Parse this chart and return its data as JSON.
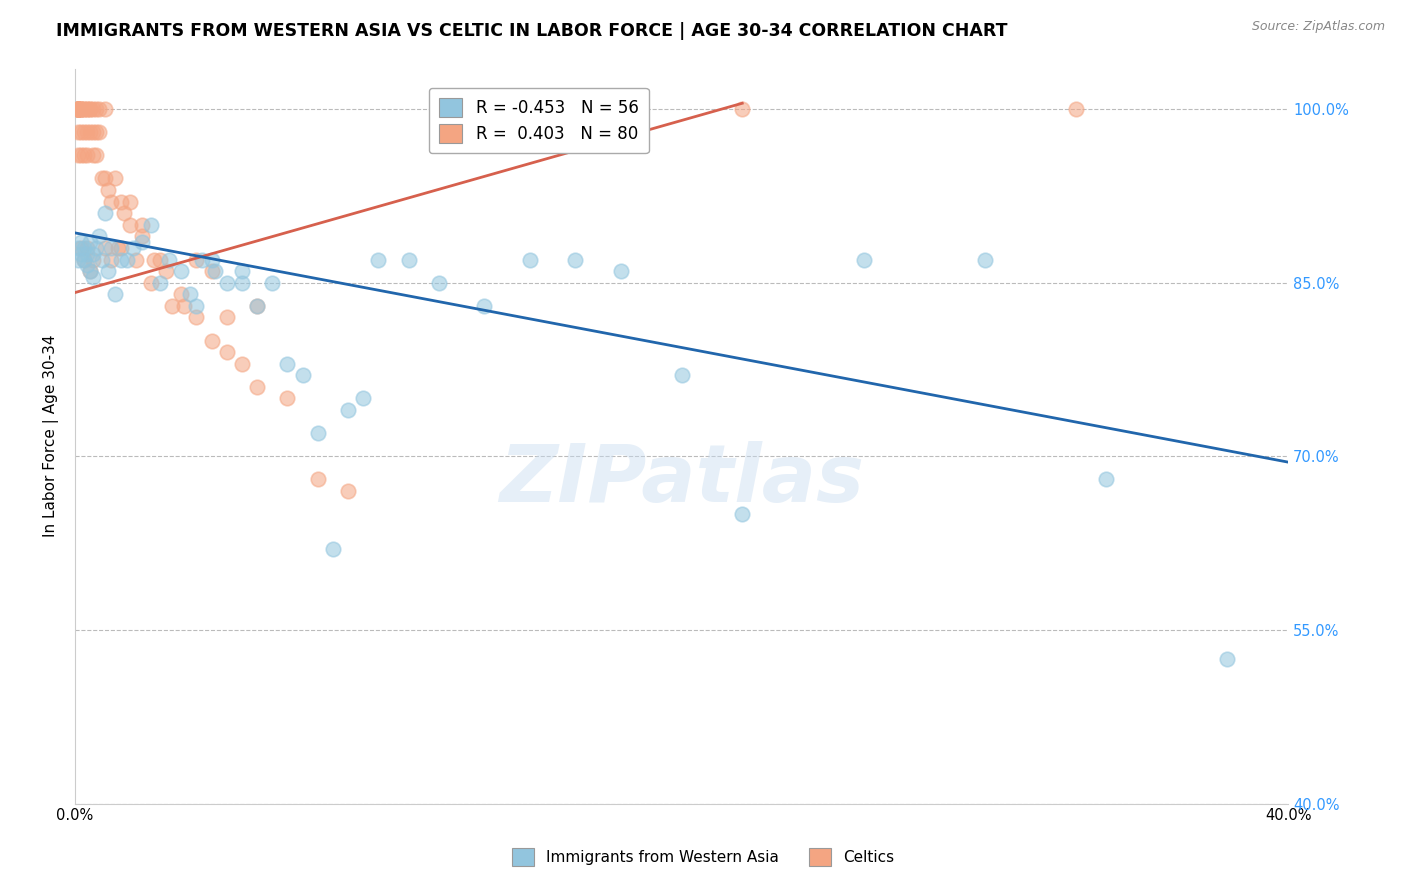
{
  "title": "IMMIGRANTS FROM WESTERN ASIA VS CELTIC IN LABOR FORCE | AGE 30-34 CORRELATION CHART",
  "source": "Source: ZipAtlas.com",
  "ylabel": "In Labor Force | Age 30-34",
  "xlim": [
    0.0,
    0.4
  ],
  "ylim": [
    0.4,
    1.035
  ],
  "ytick_positions": [
    0.4,
    0.55,
    0.7,
    0.85,
    1.0
  ],
  "yticklabels": [
    "40.0%",
    "55.0%",
    "70.0%",
    "85.0%",
    "100.0%"
  ],
  "xtick_positions": [
    0.0,
    0.05,
    0.1,
    0.15,
    0.2,
    0.25,
    0.3,
    0.35,
    0.4
  ],
  "xticklabels": [
    "0.0%",
    "",
    "",
    "",
    "",
    "",
    "",
    "",
    "40.0%"
  ],
  "blue_color": "#92c5de",
  "blue_line_color": "#2166ac",
  "pink_color": "#f4a582",
  "pink_line_color": "#d6604d",
  "watermark_text": "ZIPatlas",
  "legend_R_blue": "-0.453",
  "legend_N_blue": "56",
  "legend_R_pink": "0.403",
  "legend_N_pink": "80",
  "blue_scatter_x": [
    0.001,
    0.001,
    0.002,
    0.002,
    0.003,
    0.003,
    0.004,
    0.004,
    0.005,
    0.005,
    0.006,
    0.006,
    0.007,
    0.008,
    0.009,
    0.01,
    0.011,
    0.012,
    0.013,
    0.015,
    0.017,
    0.019,
    0.022,
    0.025,
    0.028,
    0.031,
    0.035,
    0.038,
    0.042,
    0.046,
    0.05,
    0.055,
    0.06,
    0.065,
    0.07,
    0.08,
    0.09,
    0.1,
    0.11,
    0.12,
    0.135,
    0.15,
    0.165,
    0.18,
    0.2,
    0.22,
    0.26,
    0.3,
    0.34,
    0.38,
    0.04,
    0.045,
    0.055,
    0.075,
    0.085,
    0.095
  ],
  "blue_scatter_y": [
    0.88,
    0.87,
    0.875,
    0.885,
    0.87,
    0.88,
    0.865,
    0.875,
    0.885,
    0.86,
    0.875,
    0.855,
    0.88,
    0.89,
    0.87,
    0.91,
    0.86,
    0.88,
    0.84,
    0.87,
    0.87,
    0.88,
    0.885,
    0.9,
    0.85,
    0.87,
    0.86,
    0.84,
    0.87,
    0.86,
    0.85,
    0.86,
    0.83,
    0.85,
    0.78,
    0.72,
    0.74,
    0.87,
    0.87,
    0.85,
    0.83,
    0.87,
    0.87,
    0.86,
    0.77,
    0.65,
    0.87,
    0.87,
    0.68,
    0.525,
    0.83,
    0.87,
    0.85,
    0.77,
    0.62,
    0.75
  ],
  "pink_scatter_x": [
    0.001,
    0.001,
    0.001,
    0.001,
    0.001,
    0.001,
    0.001,
    0.001,
    0.001,
    0.001,
    0.001,
    0.001,
    0.002,
    0.002,
    0.002,
    0.002,
    0.002,
    0.002,
    0.003,
    0.003,
    0.003,
    0.003,
    0.004,
    0.004,
    0.004,
    0.004,
    0.005,
    0.005,
    0.005,
    0.006,
    0.006,
    0.006,
    0.007,
    0.007,
    0.007,
    0.008,
    0.008,
    0.009,
    0.01,
    0.01,
    0.011,
    0.012,
    0.013,
    0.014,
    0.015,
    0.016,
    0.018,
    0.02,
    0.022,
    0.025,
    0.028,
    0.032,
    0.036,
    0.04,
    0.045,
    0.05,
    0.06,
    0.07,
    0.08,
    0.09,
    0.01,
    0.012,
    0.015,
    0.018,
    0.022,
    0.026,
    0.03,
    0.035,
    0.04,
    0.045,
    0.05,
    0.055,
    0.06,
    0.002,
    0.003,
    0.004,
    0.005,
    0.006,
    0.22,
    0.33
  ],
  "pink_scatter_y": [
    1.0,
    1.0,
    1.0,
    1.0,
    1.0,
    1.0,
    1.0,
    1.0,
    1.0,
    1.0,
    0.98,
    0.96,
    1.0,
    1.0,
    1.0,
    1.0,
    0.98,
    0.96,
    1.0,
    1.0,
    0.98,
    0.96,
    1.0,
    1.0,
    0.98,
    0.96,
    1.0,
    1.0,
    0.98,
    1.0,
    0.98,
    0.96,
    1.0,
    0.98,
    0.96,
    1.0,
    0.98,
    0.94,
    1.0,
    0.94,
    0.93,
    0.92,
    0.94,
    0.88,
    0.92,
    0.91,
    0.92,
    0.87,
    0.9,
    0.85,
    0.87,
    0.83,
    0.83,
    0.87,
    0.86,
    0.82,
    0.83,
    0.75,
    0.68,
    0.67,
    0.88,
    0.87,
    0.88,
    0.9,
    0.89,
    0.87,
    0.86,
    0.84,
    0.82,
    0.8,
    0.79,
    0.78,
    0.76,
    0.88,
    0.87,
    0.88,
    0.86,
    0.87,
    1.0,
    1.0
  ],
  "blue_trend_x": [
    0.0,
    0.4
  ],
  "blue_trend_y": [
    0.893,
    0.695
  ],
  "pink_trend_x": [
    -0.002,
    0.22
  ],
  "pink_trend_y": [
    0.84,
    1.005
  ],
  "grid_color": "#bbbbbb",
  "right_axis_color": "#3399ff",
  "title_fontsize": 12.5,
  "axis_label_fontsize": 11,
  "tick_fontsize": 10.5,
  "bottom_legend_label1": "Immigrants from Western Asia",
  "bottom_legend_label2": "Celtics"
}
